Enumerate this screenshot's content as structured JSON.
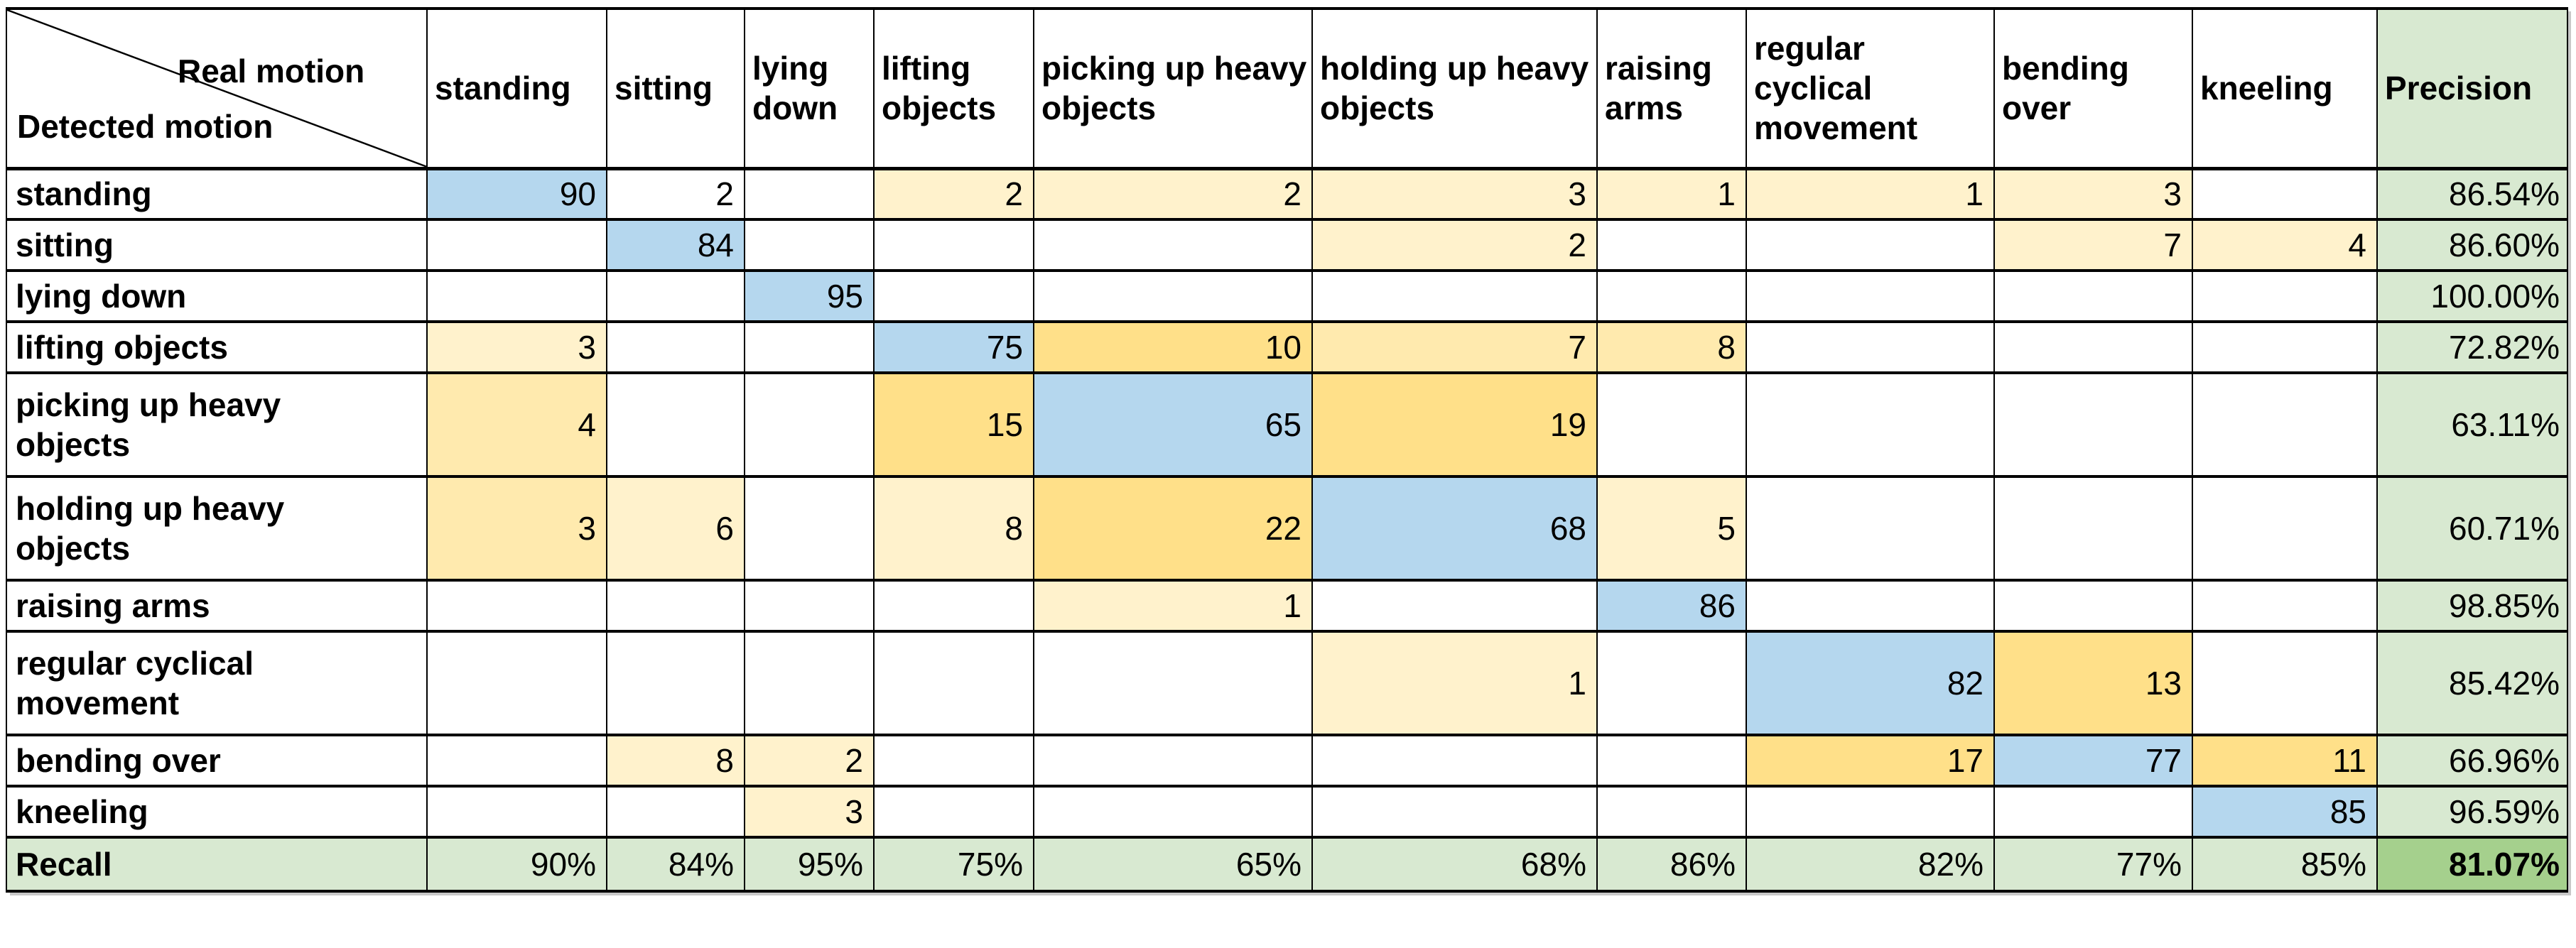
{
  "palette": {
    "blue": "#B5D7EE",
    "cream": "#FFF2CC",
    "mid": "#FFEAAE",
    "gold": "#FFE089",
    "green_light": "#D8E9D1",
    "green_dark": "#A5D08D",
    "grid": "#000000"
  },
  "corner": {
    "top_label": "Real motion",
    "bottom_label": "Detected motion"
  },
  "columns": [
    "standing",
    "sitting",
    "lying down",
    "lifting objects",
    "picking up heavy objects",
    "holding up heavy objects",
    "raising arms",
    "regular cyclical movement",
    "bending over",
    "kneeling"
  ],
  "precision_header": "Precision",
  "recall_label": "Recall",
  "rows": [
    {
      "label": "standing",
      "cells": [
        {
          "v": "90",
          "c": "blue"
        },
        {
          "v": "2"
        },
        {},
        {
          "v": "2",
          "c": "cream"
        },
        {
          "v": "2",
          "c": "cream"
        },
        {
          "v": "3",
          "c": "cream"
        },
        {
          "v": "1",
          "c": "cream"
        },
        {
          "v": "1",
          "c": "cream"
        },
        {
          "v": "3",
          "c": "cream"
        },
        {}
      ],
      "precision": "86.54%"
    },
    {
      "label": "sitting",
      "cells": [
        {},
        {
          "v": "84",
          "c": "blue"
        },
        {},
        {},
        {},
        {
          "v": "2",
          "c": "cream"
        },
        {},
        {},
        {
          "v": "7",
          "c": "cream"
        },
        {
          "v": "4",
          "c": "cream"
        }
      ],
      "precision": "86.60%"
    },
    {
      "label": "lying down",
      "cells": [
        {},
        {},
        {
          "v": "95",
          "c": "blue"
        },
        {},
        {},
        {},
        {},
        {},
        {},
        {}
      ],
      "precision": "100.00%"
    },
    {
      "label": "lifting objects",
      "cells": [
        {
          "v": "3",
          "c": "cream"
        },
        {},
        {},
        {
          "v": "75",
          "c": "blue"
        },
        {
          "v": "10",
          "c": "gold"
        },
        {
          "v": "7",
          "c": "mid"
        },
        {
          "v": "8",
          "c": "mid"
        },
        {},
        {},
        {}
      ],
      "precision": "72.82%"
    },
    {
      "label": "picking up heavy objects",
      "cells": [
        {
          "v": "4",
          "c": "mid"
        },
        {},
        {},
        {
          "v": "15",
          "c": "gold"
        },
        {
          "v": "65",
          "c": "blue"
        },
        {
          "v": "19",
          "c": "gold"
        },
        {},
        {},
        {},
        {}
      ],
      "precision": "63.11%"
    },
    {
      "label": "holding up heavy objects",
      "cells": [
        {
          "v": "3",
          "c": "mid"
        },
        {
          "v": "6",
          "c": "cream"
        },
        {},
        {
          "v": "8",
          "c": "cream"
        },
        {
          "v": "22",
          "c": "gold"
        },
        {
          "v": "68",
          "c": "blue"
        },
        {
          "v": "5",
          "c": "cream"
        },
        {},
        {},
        {}
      ],
      "precision": "60.71%"
    },
    {
      "label": "raising arms",
      "cells": [
        {},
        {},
        {},
        {},
        {
          "v": "1",
          "c": "cream"
        },
        {},
        {
          "v": "86",
          "c": "blue"
        },
        {},
        {},
        {}
      ],
      "precision": "98.85%"
    },
    {
      "label": "regular cyclical movement",
      "cells": [
        {},
        {},
        {},
        {},
        {},
        {
          "v": "1",
          "c": "cream"
        },
        {},
        {
          "v": "82",
          "c": "blue"
        },
        {
          "v": "13",
          "c": "gold"
        },
        {}
      ],
      "precision": "85.42%"
    },
    {
      "label": "bending over",
      "cells": [
        {},
        {
          "v": "8",
          "c": "cream"
        },
        {
          "v": "2",
          "c": "cream"
        },
        {},
        {},
        {},
        {},
        {
          "v": "17",
          "c": "gold"
        },
        {
          "v": "77",
          "c": "blue"
        },
        {
          "v": "11",
          "c": "gold"
        }
      ],
      "precision": "66.96%"
    },
    {
      "label": "kneeling",
      "cells": [
        {},
        {},
        {
          "v": "3",
          "c": "cream"
        },
        {},
        {},
        {},
        {},
        {},
        {},
        {
          "v": "85",
          "c": "blue"
        }
      ],
      "precision": "96.59%"
    }
  ],
  "recall": {
    "values": [
      "90%",
      "84%",
      "95%",
      "75%",
      "65%",
      "68%",
      "86%",
      "82%",
      "77%",
      "85%"
    ],
    "overall": "81.07%"
  },
  "chart_data": {
    "type": "heatmap",
    "title": "Confusion matrix: Real motion vs Detected motion",
    "x_axis_label": "Real motion",
    "y_axis_label": "Detected motion",
    "categories": [
      "standing",
      "sitting",
      "lying down",
      "lifting objects",
      "picking up heavy objects",
      "holding up heavy objects",
      "raising arms",
      "regular cyclical movement",
      "bending over",
      "kneeling"
    ],
    "matrix_rows_are_detected_motion": true,
    "matrix": [
      [
        90,
        2,
        null,
        2,
        2,
        3,
        1,
        1,
        3,
        null
      ],
      [
        null,
        84,
        null,
        null,
        null,
        2,
        null,
        null,
        7,
        4
      ],
      [
        null,
        null,
        95,
        null,
        null,
        null,
        null,
        null,
        null,
        null
      ],
      [
        3,
        null,
        null,
        75,
        10,
        7,
        8,
        null,
        null,
        null
      ],
      [
        4,
        null,
        null,
        15,
        65,
        19,
        null,
        null,
        null,
        null
      ],
      [
        3,
        6,
        null,
        8,
        22,
        68,
        5,
        null,
        null,
        null
      ],
      [
        null,
        null,
        null,
        null,
        1,
        null,
        86,
        null,
        null,
        null
      ],
      [
        null,
        null,
        null,
        null,
        null,
        1,
        null,
        82,
        13,
        null
      ],
      [
        null,
        8,
        2,
        null,
        null,
        null,
        null,
        17,
        77,
        11
      ],
      [
        null,
        null,
        3,
        null,
        null,
        null,
        null,
        null,
        null,
        85
      ]
    ],
    "precision": [
      "86.54%",
      "86.60%",
      "100.00%",
      "72.82%",
      "63.11%",
      "60.71%",
      "98.85%",
      "85.42%",
      "66.96%",
      "96.59%"
    ],
    "recall": [
      "90%",
      "84%",
      "95%",
      "75%",
      "65%",
      "68%",
      "86%",
      "82%",
      "77%",
      "85%"
    ],
    "overall_accuracy": "81.07%",
    "legend_position": "none",
    "grid": true
  }
}
